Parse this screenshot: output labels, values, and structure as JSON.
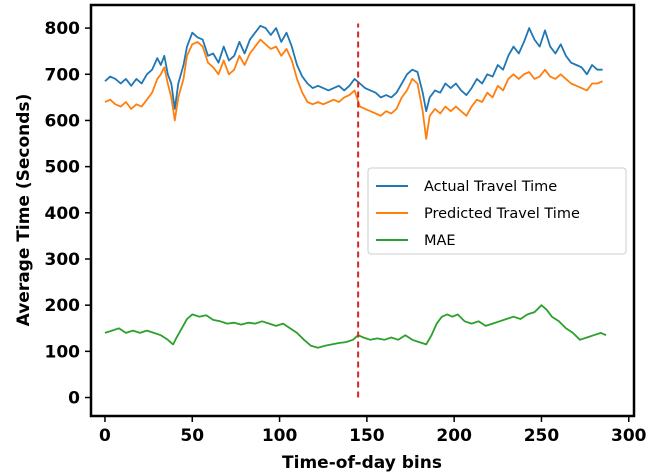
{
  "chart_data": {
    "type": "line",
    "title": "",
    "xlabel": "Time-of-day bins",
    "ylabel": "Average Time (Seconds)",
    "xlim": [
      -8,
      303
    ],
    "ylim": [
      -40,
      850
    ],
    "x_ticks": [
      0,
      50,
      100,
      150,
      200,
      250,
      300
    ],
    "y_ticks": [
      0,
      100,
      200,
      300,
      400,
      500,
      600,
      700,
      800
    ],
    "grid": false,
    "legend_position": "center-right",
    "vertical_marker": {
      "x": 145,
      "y_range": [
        0,
        810
      ],
      "color": "#d62728",
      "style": "dashed"
    },
    "series": [
      {
        "name": "Actual Travel Time",
        "color": "#1f77b4",
        "points": [
          [
            0,
            685
          ],
          [
            3,
            695
          ],
          [
            6,
            690
          ],
          [
            9,
            680
          ],
          [
            12,
            690
          ],
          [
            15,
            675
          ],
          [
            18,
            690
          ],
          [
            21,
            680
          ],
          [
            24,
            700
          ],
          [
            27,
            710
          ],
          [
            30,
            735
          ],
          [
            32,
            720
          ],
          [
            34,
            740
          ],
          [
            36,
            700
          ],
          [
            38,
            680
          ],
          [
            40,
            625
          ],
          [
            42,
            680
          ],
          [
            45,
            720
          ],
          [
            47,
            760
          ],
          [
            50,
            790
          ],
          [
            53,
            780
          ],
          [
            56,
            775
          ],
          [
            59,
            740
          ],
          [
            62,
            745
          ],
          [
            65,
            725
          ],
          [
            68,
            760
          ],
          [
            71,
            730
          ],
          [
            74,
            740
          ],
          [
            77,
            770
          ],
          [
            80,
            745
          ],
          [
            83,
            775
          ],
          [
            86,
            790
          ],
          [
            89,
            805
          ],
          [
            92,
            800
          ],
          [
            95,
            785
          ],
          [
            98,
            800
          ],
          [
            101,
            770
          ],
          [
            104,
            790
          ],
          [
            107,
            760
          ],
          [
            110,
            720
          ],
          [
            113,
            695
          ],
          [
            116,
            680
          ],
          [
            119,
            670
          ],
          [
            122,
            675
          ],
          [
            125,
            670
          ],
          [
            128,
            665
          ],
          [
            131,
            670
          ],
          [
            134,
            675
          ],
          [
            137,
            665
          ],
          [
            140,
            675
          ],
          [
            143,
            690
          ],
          [
            146,
            680
          ],
          [
            149,
            670
          ],
          [
            152,
            665
          ],
          [
            155,
            660
          ],
          [
            158,
            650
          ],
          [
            161,
            655
          ],
          [
            164,
            650
          ],
          [
            167,
            660
          ],
          [
            170,
            680
          ],
          [
            173,
            700
          ],
          [
            176,
            710
          ],
          [
            179,
            705
          ],
          [
            182,
            660
          ],
          [
            184,
            620
          ],
          [
            186,
            650
          ],
          [
            189,
            665
          ],
          [
            192,
            660
          ],
          [
            195,
            680
          ],
          [
            198,
            670
          ],
          [
            201,
            680
          ],
          [
            204,
            665
          ],
          [
            207,
            655
          ],
          [
            210,
            670
          ],
          [
            213,
            690
          ],
          [
            216,
            680
          ],
          [
            219,
            700
          ],
          [
            222,
            695
          ],
          [
            225,
            720
          ],
          [
            228,
            710
          ],
          [
            231,
            740
          ],
          [
            234,
            760
          ],
          [
            237,
            745
          ],
          [
            240,
            770
          ],
          [
            243,
            800
          ],
          [
            246,
            775
          ],
          [
            249,
            760
          ],
          [
            252,
            795
          ],
          [
            255,
            760
          ],
          [
            258,
            745
          ],
          [
            261,
            765
          ],
          [
            264,
            740
          ],
          [
            267,
            725
          ],
          [
            270,
            720
          ],
          [
            273,
            715
          ],
          [
            276,
            700
          ],
          [
            279,
            720
          ],
          [
            282,
            710
          ],
          [
            285,
            710
          ]
        ]
      },
      {
        "name": "Predicted Travel Time",
        "color": "#ff7f0e",
        "points": [
          [
            0,
            640
          ],
          [
            3,
            645
          ],
          [
            6,
            635
          ],
          [
            9,
            630
          ],
          [
            12,
            640
          ],
          [
            15,
            625
          ],
          [
            18,
            635
          ],
          [
            21,
            630
          ],
          [
            24,
            645
          ],
          [
            27,
            660
          ],
          [
            30,
            690
          ],
          [
            32,
            700
          ],
          [
            34,
            715
          ],
          [
            36,
            680
          ],
          [
            38,
            650
          ],
          [
            40,
            600
          ],
          [
            42,
            650
          ],
          [
            45,
            690
          ],
          [
            47,
            740
          ],
          [
            50,
            765
          ],
          [
            53,
            770
          ],
          [
            56,
            760
          ],
          [
            59,
            725
          ],
          [
            62,
            715
          ],
          [
            65,
            700
          ],
          [
            68,
            730
          ],
          [
            71,
            700
          ],
          [
            74,
            710
          ],
          [
            77,
            740
          ],
          [
            80,
            720
          ],
          [
            83,
            745
          ],
          [
            86,
            760
          ],
          [
            89,
            775
          ],
          [
            92,
            765
          ],
          [
            95,
            755
          ],
          [
            98,
            760
          ],
          [
            101,
            740
          ],
          [
            104,
            755
          ],
          [
            107,
            730
          ],
          [
            110,
            690
          ],
          [
            113,
            660
          ],
          [
            116,
            640
          ],
          [
            119,
            635
          ],
          [
            122,
            640
          ],
          [
            125,
            635
          ],
          [
            128,
            640
          ],
          [
            131,
            645
          ],
          [
            134,
            640
          ],
          [
            137,
            650
          ],
          [
            140,
            655
          ],
          [
            143,
            665
          ],
          [
            146,
            630
          ],
          [
            149,
            625
          ],
          [
            152,
            620
          ],
          [
            155,
            615
          ],
          [
            158,
            610
          ],
          [
            161,
            620
          ],
          [
            164,
            615
          ],
          [
            167,
            625
          ],
          [
            170,
            650
          ],
          [
            173,
            665
          ],
          [
            176,
            690
          ],
          [
            179,
            680
          ],
          [
            182,
            620
          ],
          [
            184,
            560
          ],
          [
            186,
            610
          ],
          [
            189,
            625
          ],
          [
            192,
            615
          ],
          [
            195,
            630
          ],
          [
            198,
            620
          ],
          [
            201,
            630
          ],
          [
            204,
            620
          ],
          [
            207,
            610
          ],
          [
            210,
            630
          ],
          [
            213,
            645
          ],
          [
            216,
            640
          ],
          [
            219,
            660
          ],
          [
            222,
            650
          ],
          [
            225,
            675
          ],
          [
            228,
            665
          ],
          [
            231,
            690
          ],
          [
            234,
            700
          ],
          [
            237,
            690
          ],
          [
            240,
            700
          ],
          [
            243,
            705
          ],
          [
            246,
            690
          ],
          [
            249,
            695
          ],
          [
            252,
            710
          ],
          [
            255,
            695
          ],
          [
            258,
            690
          ],
          [
            261,
            700
          ],
          [
            264,
            690
          ],
          [
            267,
            680
          ],
          [
            270,
            675
          ],
          [
            273,
            670
          ],
          [
            276,
            665
          ],
          [
            279,
            680
          ],
          [
            282,
            680
          ],
          [
            285,
            685
          ]
        ]
      },
      {
        "name": "MAE",
        "color": "#2ca02c",
        "points": [
          [
            0,
            140
          ],
          [
            4,
            145
          ],
          [
            8,
            150
          ],
          [
            12,
            140
          ],
          [
            16,
            145
          ],
          [
            20,
            140
          ],
          [
            24,
            145
          ],
          [
            28,
            140
          ],
          [
            32,
            135
          ],
          [
            36,
            125
          ],
          [
            39,
            115
          ],
          [
            41,
            130
          ],
          [
            44,
            150
          ],
          [
            47,
            170
          ],
          [
            50,
            180
          ],
          [
            54,
            175
          ],
          [
            58,
            178
          ],
          [
            62,
            168
          ],
          [
            66,
            165
          ],
          [
            70,
            160
          ],
          [
            74,
            162
          ],
          [
            78,
            158
          ],
          [
            82,
            162
          ],
          [
            86,
            160
          ],
          [
            90,
            165
          ],
          [
            94,
            160
          ],
          [
            98,
            155
          ],
          [
            102,
            160
          ],
          [
            106,
            150
          ],
          [
            110,
            140
          ],
          [
            114,
            125
          ],
          [
            118,
            112
          ],
          [
            122,
            108
          ],
          [
            126,
            112
          ],
          [
            130,
            115
          ],
          [
            134,
            118
          ],
          [
            138,
            120
          ],
          [
            142,
            125
          ],
          [
            145,
            135
          ],
          [
            148,
            130
          ],
          [
            152,
            125
          ],
          [
            156,
            128
          ],
          [
            160,
            125
          ],
          [
            164,
            130
          ],
          [
            168,
            125
          ],
          [
            172,
            135
          ],
          [
            176,
            125
          ],
          [
            180,
            120
          ],
          [
            184,
            115
          ],
          [
            187,
            135
          ],
          [
            190,
            160
          ],
          [
            193,
            175
          ],
          [
            196,
            180
          ],
          [
            199,
            175
          ],
          [
            202,
            180
          ],
          [
            206,
            165
          ],
          [
            210,
            160
          ],
          [
            214,
            165
          ],
          [
            218,
            155
          ],
          [
            222,
            160
          ],
          [
            226,
            165
          ],
          [
            230,
            170
          ],
          [
            234,
            175
          ],
          [
            238,
            170
          ],
          [
            242,
            180
          ],
          [
            246,
            185
          ],
          [
            250,
            200
          ],
          [
            253,
            190
          ],
          [
            256,
            175
          ],
          [
            260,
            165
          ],
          [
            264,
            150
          ],
          [
            268,
            140
          ],
          [
            272,
            125
          ],
          [
            276,
            130
          ],
          [
            280,
            135
          ],
          [
            284,
            140
          ],
          [
            287,
            135
          ]
        ]
      }
    ]
  }
}
